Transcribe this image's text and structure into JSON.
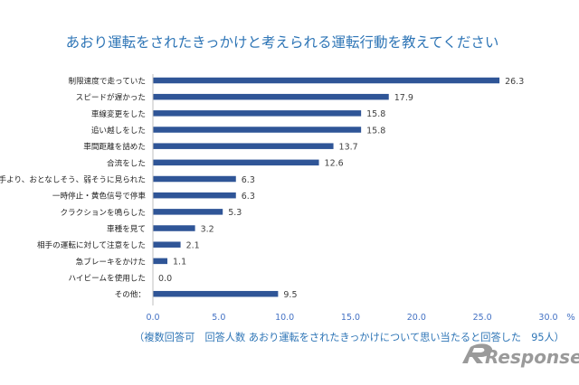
{
  "chart_data": {
    "type": "bar",
    "orientation": "horizontal",
    "title": "あおり運転をされたきっかけと考えられる運転行動を教えてください",
    "categories": [
      "制限速度で走っていた",
      "スピードが遅かった",
      "車線変更をした",
      "追い越しをした",
      "車間距離を詰めた",
      "合流をした",
      "自分が相手より、おとなしそう、弱そうに見られた",
      "一時停止・黄色信号で停車",
      "クラクションを鳴らした",
      "車種を見て",
      "相手の運転に対して注意をした",
      "急ブレーキをかけた",
      "ハイビームを使用した",
      "その他："
    ],
    "values": [
      26.3,
      17.9,
      15.8,
      15.8,
      13.7,
      12.6,
      6.3,
      6.3,
      5.3,
      3.2,
      2.1,
      1.1,
      0.0,
      9.5
    ],
    "value_labels": [
      "26.3",
      "17.9",
      "15.8",
      "15.8",
      "13.7",
      "12.6",
      "6.3",
      "6.3",
      "5.3",
      "3.2",
      "2.1",
      "1.1",
      "0.0",
      "9.5"
    ],
    "xlim": [
      0,
      30
    ],
    "xticks": [
      "0.0",
      "5.0",
      "10.0",
      "15.0",
      "20.0",
      "25.0",
      "30.0"
    ],
    "unit": "%",
    "note": "（複数回答可　回答人数 あおり運転をされたきっかけについて思い当たると回答した　95人）",
    "grid": false,
    "bar_color": "#2f5597",
    "title_color": "#2e75b6",
    "tick_color": "#4472c4"
  },
  "watermark": "Response."
}
